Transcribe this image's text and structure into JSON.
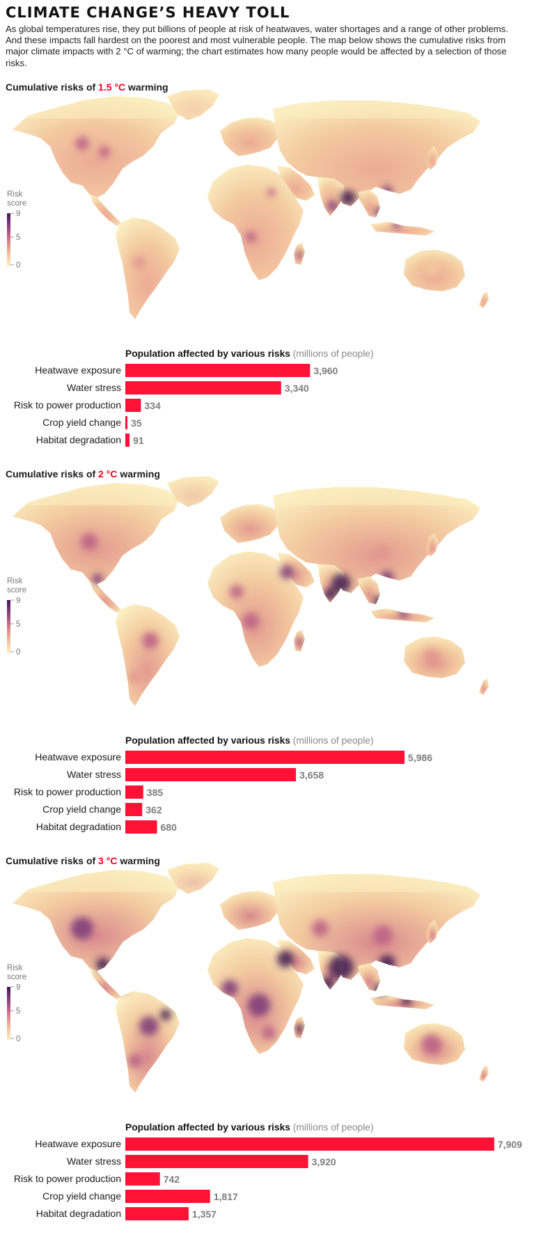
{
  "header": {
    "title": "CLIMATE CHANGE’S HEAVY TOLL",
    "intro": "As global temperatures rise, they put billions of people at risk of heatwaves, water shortages and a range of other problems. And these impacts fall hardest on the poorest and most vulnerable people. The map below shows the cumulative risks from major climate impacts with 2 °C of warming; the chart estimates how many people would be affected by a selection of those risks."
  },
  "legend": {
    "title_line1": "Risk",
    "title_line2": "score",
    "ticks": [
      "9",
      "5",
      "0"
    ],
    "colors": [
      "#3d1450",
      "#7b3a78",
      "#b95f85",
      "#e1958e",
      "#f3c9a0",
      "#fbeec0"
    ]
  },
  "colors": {
    "bar": "#ff1236",
    "bar_value": "#7d7d7d",
    "accent_text": "#e8001f",
    "land_low": "#fbeec0",
    "ocean": "#ffffff"
  },
  "panels": [
    {
      "title_prefix": "Cumulative risks of ",
      "warming": "1.5 °C",
      "title_suffix": " warming",
      "bars_title": "Population affected by various risks",
      "bars_unit": "(millions of people)",
      "chart_data": {
        "type": "bar",
        "title": "Population affected by various risks",
        "unit": "(millions of people)",
        "categories": [
          "Heatwave exposure",
          "Water stress",
          "Risk to power production",
          "Crop yield change",
          "Habitat degradation"
        ],
        "values": [
          3960,
          3340,
          334,
          35,
          91
        ],
        "value_labels": [
          "3,960",
          "3,340",
          "334",
          "35",
          "91"
        ]
      }
    },
    {
      "title_prefix": "Cumulative risks of ",
      "warming": "2 °C",
      "title_suffix": " warming",
      "bars_title": "Population affected by various risks",
      "bars_unit": "(millions of people)",
      "chart_data": {
        "type": "bar",
        "title": "Population affected by various risks",
        "unit": "(millions of people)",
        "categories": [
          "Heatwave exposure",
          "Water stress",
          "Risk to power production",
          "Crop yield change",
          "Habitat degradation"
        ],
        "values": [
          5986,
          3658,
          385,
          362,
          680
        ],
        "value_labels": [
          "5,986",
          "3,658",
          "385",
          "362",
          "680"
        ]
      }
    },
    {
      "title_prefix": "Cumulative risks of ",
      "warming": "3 °C",
      "title_suffix": " warming",
      "bars_title": "Population affected by various risks",
      "bars_unit": "(millions of people)",
      "chart_data": {
        "type": "bar",
        "title": "Population affected by various risks",
        "unit": "(millions of people)",
        "categories": [
          "Heatwave exposure",
          "Water stress",
          "Risk to power production",
          "Crop yield change",
          "Habitat degradation"
        ],
        "values": [
          7909,
          3920,
          742,
          1817,
          1357
        ],
        "value_labels": [
          "7,909",
          "3,920",
          "742",
          "1,817",
          "1,357"
        ]
      }
    }
  ]
}
